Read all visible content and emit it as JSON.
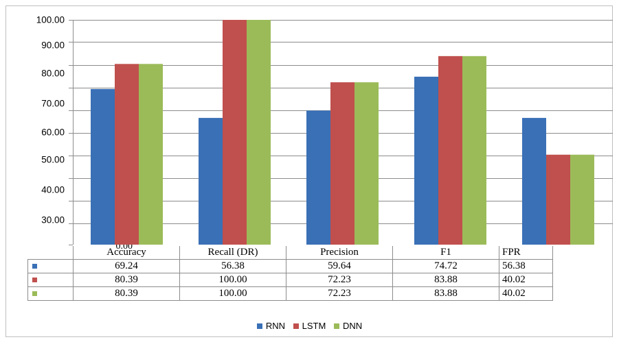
{
  "chart_data": {
    "type": "bar",
    "categories": [
      "Accuracy",
      "Recall (DR)",
      "Precision",
      "F1",
      "FPR"
    ],
    "series": [
      {
        "name": "RNN",
        "color": "#3A70B6",
        "values": [
          69.24,
          56.38,
          59.64,
          74.72,
          56.38
        ],
        "labels": [
          "69.24",
          "56.38",
          "59.64",
          "74.72",
          "56.38"
        ]
      },
      {
        "name": "LSTM",
        "color": "#C0504D",
        "values": [
          80.39,
          100.0,
          72.23,
          83.88,
          40.02
        ],
        "labels": [
          "80.39",
          "100.00",
          "72.23",
          "83.88",
          "40.02"
        ]
      },
      {
        "name": "DNN",
        "color": "#9BBB59",
        "values": [
          80.39,
          100.0,
          72.23,
          83.88,
          40.02
        ],
        "labels": [
          "80.39",
          "100.00",
          "72.23",
          "83.88",
          "40.02"
        ]
      }
    ],
    "y_tick_labels": [
      "100.00",
      "90.00",
      "80.00",
      "70.00",
      "60.00",
      "50.00",
      "40.00",
      "30.00",
      "0.00"
    ],
    "ylim": [
      0,
      100
    ],
    "grid": true,
    "legend": "bottom",
    "data_table": true
  }
}
